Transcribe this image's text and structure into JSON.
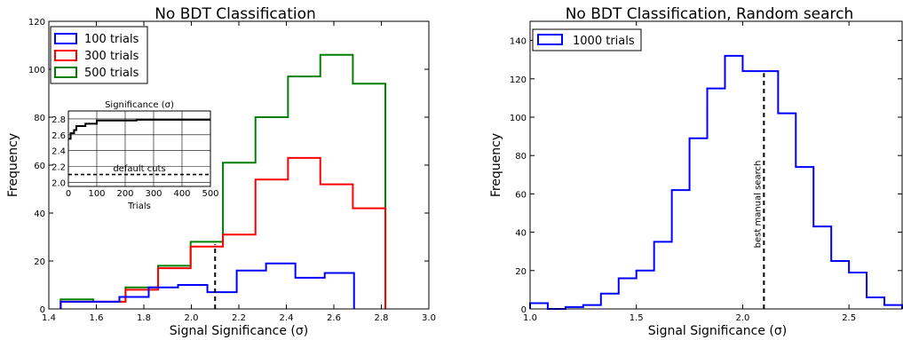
{
  "chart_data": [
    {
      "type": "histogram",
      "title": "No BDT Classification",
      "xlabel": "Signal Significance (σ)",
      "ylabel": "Frequency",
      "xlim": [
        1.4,
        3.0
      ],
      "ylim": [
        0,
        120
      ],
      "xticks": [
        "1.4",
        "1.6",
        "1.8",
        "2.0",
        "2.2",
        "2.4",
        "2.6",
        "2.8",
        "3.0"
      ],
      "yticks": [
        "0",
        "20",
        "40",
        "60",
        "80",
        "100",
        "120"
      ],
      "legend_position": "top-left",
      "bin_edges": [
        1.45,
        1.587,
        1.723,
        1.86,
        1.997,
        2.133,
        2.27,
        2.407,
        2.543,
        2.68,
        2.817
      ],
      "series": [
        {
          "name": "100 trials",
          "color": "#0000ff",
          "bin_edges": [
            1.45,
            1.5735,
            1.697,
            1.8205,
            1.944,
            2.0675,
            2.191,
            2.3145,
            2.438,
            2.5615,
            2.685
          ],
          "values": [
            3,
            3,
            5,
            9,
            10,
            7,
            16,
            19,
            13,
            15
          ]
        },
        {
          "name": "300 trials",
          "color": "#ff0000",
          "values": [
            3,
            3,
            8,
            17,
            26,
            31,
            54,
            63,
            52,
            42
          ]
        },
        {
          "name": "500 trials",
          "color": "#008000",
          "values": [
            4,
            3,
            9,
            18,
            28,
            61,
            80,
            97,
            106,
            94
          ]
        }
      ],
      "annotations": [
        {
          "type": "vline",
          "x": 2.1,
          "y_to": 27,
          "style": "dashed"
        }
      ],
      "inset": {
        "title": "Significance (σ)",
        "xlabel": "Trials",
        "xlim": [
          0,
          500
        ],
        "ylim": [
          1.95,
          2.9
        ],
        "xticks": [
          "0",
          "100",
          "200",
          "300",
          "400",
          "500"
        ],
        "yticks": [
          "2.0",
          "2.2",
          "2.4",
          "2.6",
          "2.8"
        ],
        "grid": true,
        "default_cuts_label": "default cuts",
        "default_cuts_value": 2.1,
        "curve_x": [
          0,
          8,
          8,
          20,
          20,
          28,
          28,
          60,
          60,
          100,
          100,
          240,
          240,
          500
        ],
        "curve_y": [
          2.55,
          2.55,
          2.62,
          2.62,
          2.66,
          2.66,
          2.71,
          2.71,
          2.74,
          2.74,
          2.78,
          2.78,
          2.79,
          2.79
        ]
      }
    },
    {
      "type": "histogram",
      "title": "No BDT Classification, Random search",
      "xlabel": "Signal Significance (σ)",
      "ylabel": "Frequency",
      "xlim": [
        1.0,
        2.75
      ],
      "ylim": [
        0,
        150
      ],
      "xticks": [
        "1.0",
        "1.5",
        "2.0",
        "2.5"
      ],
      "yticks": [
        "0",
        "20",
        "40",
        "60",
        "80",
        "100",
        "120",
        "140"
      ],
      "legend_position": "top-left",
      "bin_edges": [
        1.0,
        1.0833,
        1.1667,
        1.25,
        1.3333,
        1.4167,
        1.5,
        1.5833,
        1.6667,
        1.75,
        1.8333,
        1.9167,
        2.0,
        2.0833,
        2.1667,
        2.25,
        2.3333,
        2.4167,
        2.5,
        2.5833,
        2.6667,
        2.75
      ],
      "series": [
        {
          "name": "1000 trials",
          "color": "#0000ff",
          "values": [
            3,
            0,
            1,
            2,
            8,
            16,
            20,
            35,
            62,
            89,
            115,
            132,
            124,
            124,
            102,
            74,
            43,
            25,
            19,
            6,
            2
          ]
        }
      ],
      "annotations": [
        {
          "type": "vline",
          "x": 2.1,
          "y_to": 123,
          "style": "dashed",
          "label": "best manual search"
        }
      ]
    }
  ]
}
